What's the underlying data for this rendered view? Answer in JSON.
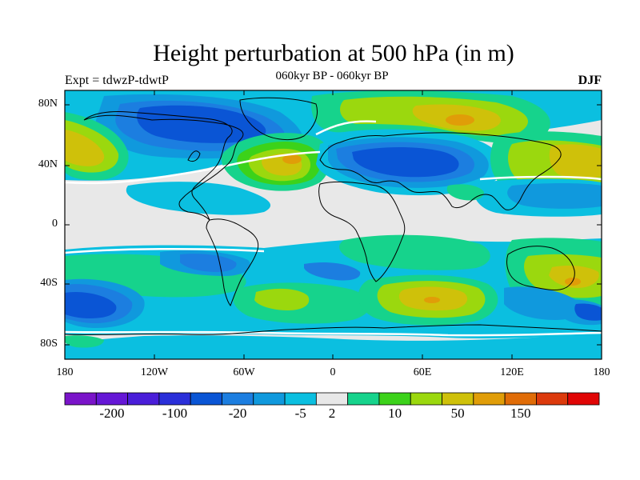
{
  "title": "Height perturbation at 500 hPa (in m)",
  "subtitle": "060kyr BP - 060kyr BP",
  "experiment_label": "Expt = tdwzP-tdwtP",
  "season": "DJF",
  "y_axis": {
    "ticks": [
      "80N",
      "40N",
      "0",
      "40S",
      "80S"
    ]
  },
  "x_axis": {
    "ticks": [
      "180",
      "120W",
      "60W",
      "0",
      "60E",
      "120E",
      "180"
    ]
  },
  "colorbar": {
    "colors": [
      "#7a14c9",
      "#6517d6",
      "#4a1ed9",
      "#2a2fd9",
      "#0a55d5",
      "#1c7ee0",
      "#1099dd",
      "#0bbfe0",
      "#e8e8e8",
      "#16d38c",
      "#3cd21a",
      "#9bd80e",
      "#cfc10a",
      "#e09d08",
      "#e06c07",
      "#dc3a0c",
      "#e00505"
    ],
    "labels": [
      "-200",
      "-100",
      "-20",
      "-5",
      "2",
      "10",
      "50",
      "150"
    ]
  },
  "field_colors": {
    "background": "#e8e8e8",
    "cyan": "#0bbfe0",
    "light_blue": "#1099dd",
    "mid_blue": "#1c7ee0",
    "blue": "#0a55d5",
    "green": "#16d38c",
    "bright_green": "#3cd21a",
    "yellow_green": "#9bd80e",
    "yellow": "#cfc10a",
    "orange": "#e09d08"
  }
}
